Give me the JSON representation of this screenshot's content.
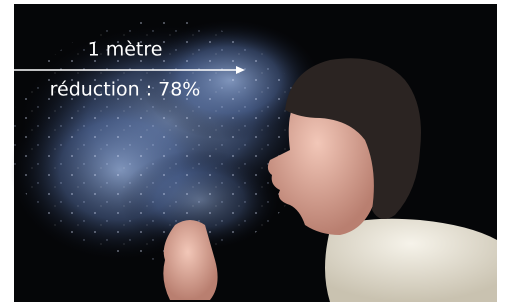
{
  "annotation": {
    "distance": "1 mètre",
    "reduction": "réduction : 78%"
  }
}
